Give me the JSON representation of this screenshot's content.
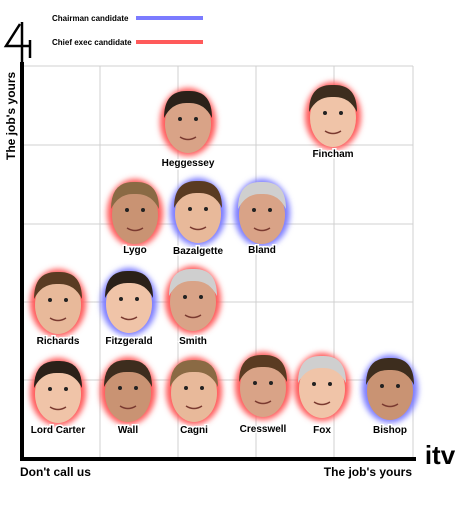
{
  "groups": [
    {
      "label": "Chairman candidate",
      "color": "#7b7bff",
      "members": [
        "Bazalgette",
        "Bland",
        "Fitzgerald",
        "Bishop"
      ]
    },
    {
      "label": "Chief exec candidate",
      "color": "#ff5a5a",
      "members": [
        "Heggessey",
        "Fincham",
        "Lygo",
        "Richards",
        "Smith",
        "Lord Carter",
        "Wall",
        "Cagni",
        "Cresswell",
        "Fox"
      ]
    }
  ],
  "axes": {
    "y_label": "The job's yours",
    "x_start": "Don't call us",
    "x_end": "The job's yours"
  },
  "logos": {
    "right": "itv"
  }
}
